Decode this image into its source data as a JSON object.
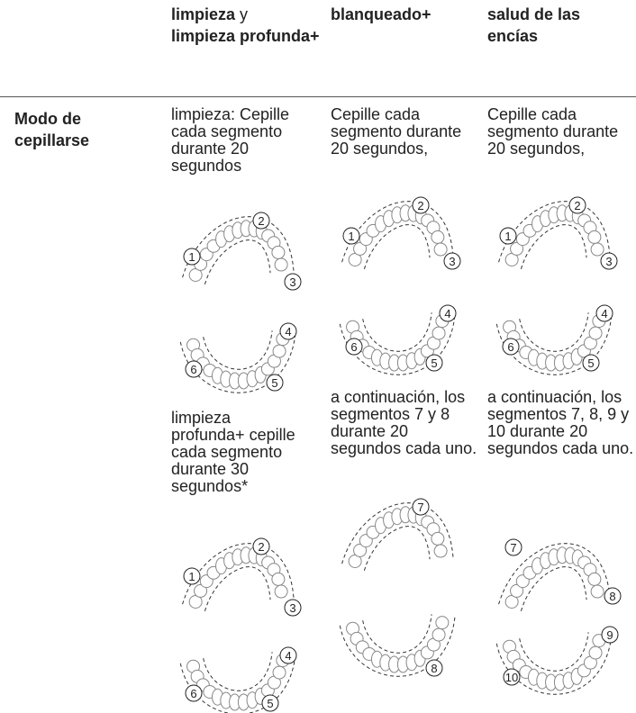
{
  "header": {
    "columns": [
      {
        "text": [
          "limpieza",
          "y",
          "limpieza profunda+"
        ]
      },
      {
        "text": [
          "blanqueado+"
        ]
      },
      {
        "text": [
          "salud de las encías"
        ]
      }
    ]
  },
  "row": {
    "label": "Modo de cepillarse",
    "cells": [
      {
        "blocks": [
          {
            "text": "limpieza: Cepille cada segmento durante 20 segundos",
            "diagrams": [
              [
                "1",
                "2",
                "3"
              ],
              [
                "4",
                "5",
                "6"
              ]
            ]
          },
          {
            "text": "limpieza profunda+ cepille cada segmento durante 30 segundos*",
            "diagrams": [
              [
                "1",
                "2",
                "3"
              ],
              [
                "4",
                "5",
                "6"
              ]
            ]
          }
        ]
      },
      {
        "blocks": [
          {
            "text": "Cepille cada segmento durante 20 segundos,",
            "diagrams": [
              [
                "1",
                "2",
                "3"
              ],
              [
                "4",
                "5",
                "6"
              ]
            ]
          },
          {
            "text": "a continuación, los segmentos 7 y 8 durante 20 segundos cada uno.",
            "diagrams": [
              [
                "7"
              ],
              [
                "8"
              ]
            ]
          }
        ]
      },
      {
        "blocks": [
          {
            "text": "Cepille cada segmento durante 20 segundos,",
            "diagrams": [
              [
                "1",
                "2",
                "3"
              ],
              [
                "4",
                "5",
                "6"
              ]
            ]
          },
          {
            "text": "a continuación, los segmentos 7, 8, 9 y 10 durante 20 segundos cada uno.",
            "diagrams": [
              [
                "7",
                "8"
              ],
              [
                "9",
                "10"
              ]
            ]
          }
        ]
      }
    ]
  }
}
